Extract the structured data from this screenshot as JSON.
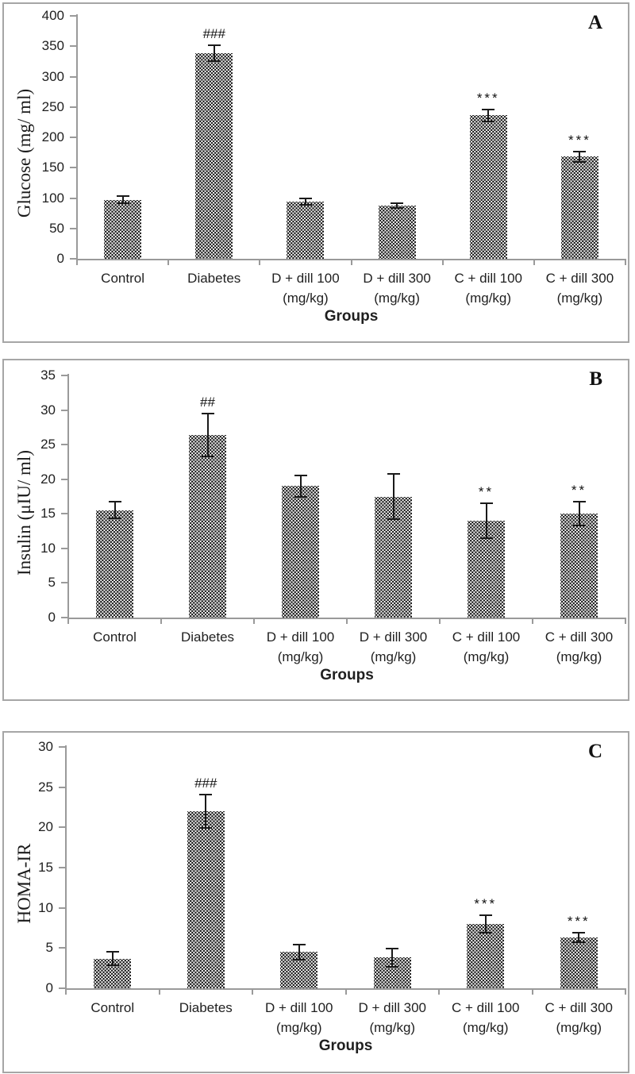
{
  "figure_caption_letters": [
    "A",
    "B",
    "C"
  ],
  "colors": {
    "background": "#ffffff",
    "panel_border": "#a6a6a6",
    "axis": "#9a9a9a",
    "text": "#1a1a1a",
    "bar_dot": "#141414",
    "bar_background": "#ffffff"
  },
  "chart_data": [
    {
      "type": "bar",
      "panel_letter": "A",
      "title": "",
      "ylabel": "Glucose (mg/ ml)",
      "xlabel": "Groups",
      "ylim": [
        0,
        400
      ],
      "ytick_step": 50,
      "ytick_labels": [
        "0",
        "50",
        "100",
        "150",
        "200",
        "250",
        "300",
        "350",
        "400"
      ],
      "categories": [
        "Control",
        "Diabetes",
        "D + dill 100\n(mg/kg)",
        "D + dill 300\n(mg/kg)",
        "C + dill 100\n(mg/kg)",
        "C + dill 300\n(mg/kg)"
      ],
      "values": [
        97,
        338,
        94,
        88,
        236,
        168
      ],
      "errors": [
        6,
        13,
        5,
        4,
        10,
        9
      ],
      "annotations": [
        "",
        "###",
        "",
        "",
        "***",
        "***"
      ],
      "bar_fill": "black-dot-stipple-pattern",
      "grid": false,
      "legend": "none"
    },
    {
      "type": "bar",
      "panel_letter": "B",
      "title": "",
      "ylabel": "Insulin (μIU/ ml)",
      "xlabel": "Groups",
      "ylim": [
        0,
        35
      ],
      "ytick_step": 5,
      "ytick_labels": [
        "0",
        "5",
        "10",
        "15",
        "20",
        "25",
        "30",
        "35"
      ],
      "categories": [
        "Control",
        "Diabetes",
        "D + dill 100\n(mg/kg)",
        "D + dill 300\n(mg/kg)",
        "C + dill 100\n(mg/kg)",
        "C + dill 300\n(mg/kg)"
      ],
      "values": [
        15.5,
        26.4,
        19,
        17.5,
        14,
        15
      ],
      "errors": [
        1.2,
        3.1,
        1.5,
        3.3,
        2.5,
        1.7
      ],
      "annotations": [
        "",
        "##",
        "",
        "",
        "**",
        "**"
      ],
      "bar_fill": "black-dot-stipple-pattern",
      "grid": false,
      "legend": "none"
    },
    {
      "type": "bar",
      "panel_letter": "C",
      "title": "",
      "ylabel": "HOMA-IR",
      "xlabel": "Groups",
      "ylim": [
        0,
        30
      ],
      "ytick_step": 5,
      "ytick_labels": [
        "0",
        "5",
        "10",
        "15",
        "20",
        "25",
        "30"
      ],
      "categories": [
        "Control",
        "Diabetes",
        "D + dill 100\n(mg/kg)",
        "D + dill 300\n(mg/kg)",
        "C + dill 100\n(mg/kg)",
        "C + dill 300\n(mg/kg)"
      ],
      "values": [
        3.7,
        22,
        4.5,
        3.8,
        8,
        6.3
      ],
      "errors": [
        0.8,
        2.1,
        0.9,
        1.1,
        1.1,
        0.6
      ],
      "annotations": [
        "",
        "###",
        "",
        "",
        "***",
        "***"
      ],
      "bar_fill": "black-dot-stipple-pattern",
      "grid": false,
      "legend": "none"
    }
  ]
}
